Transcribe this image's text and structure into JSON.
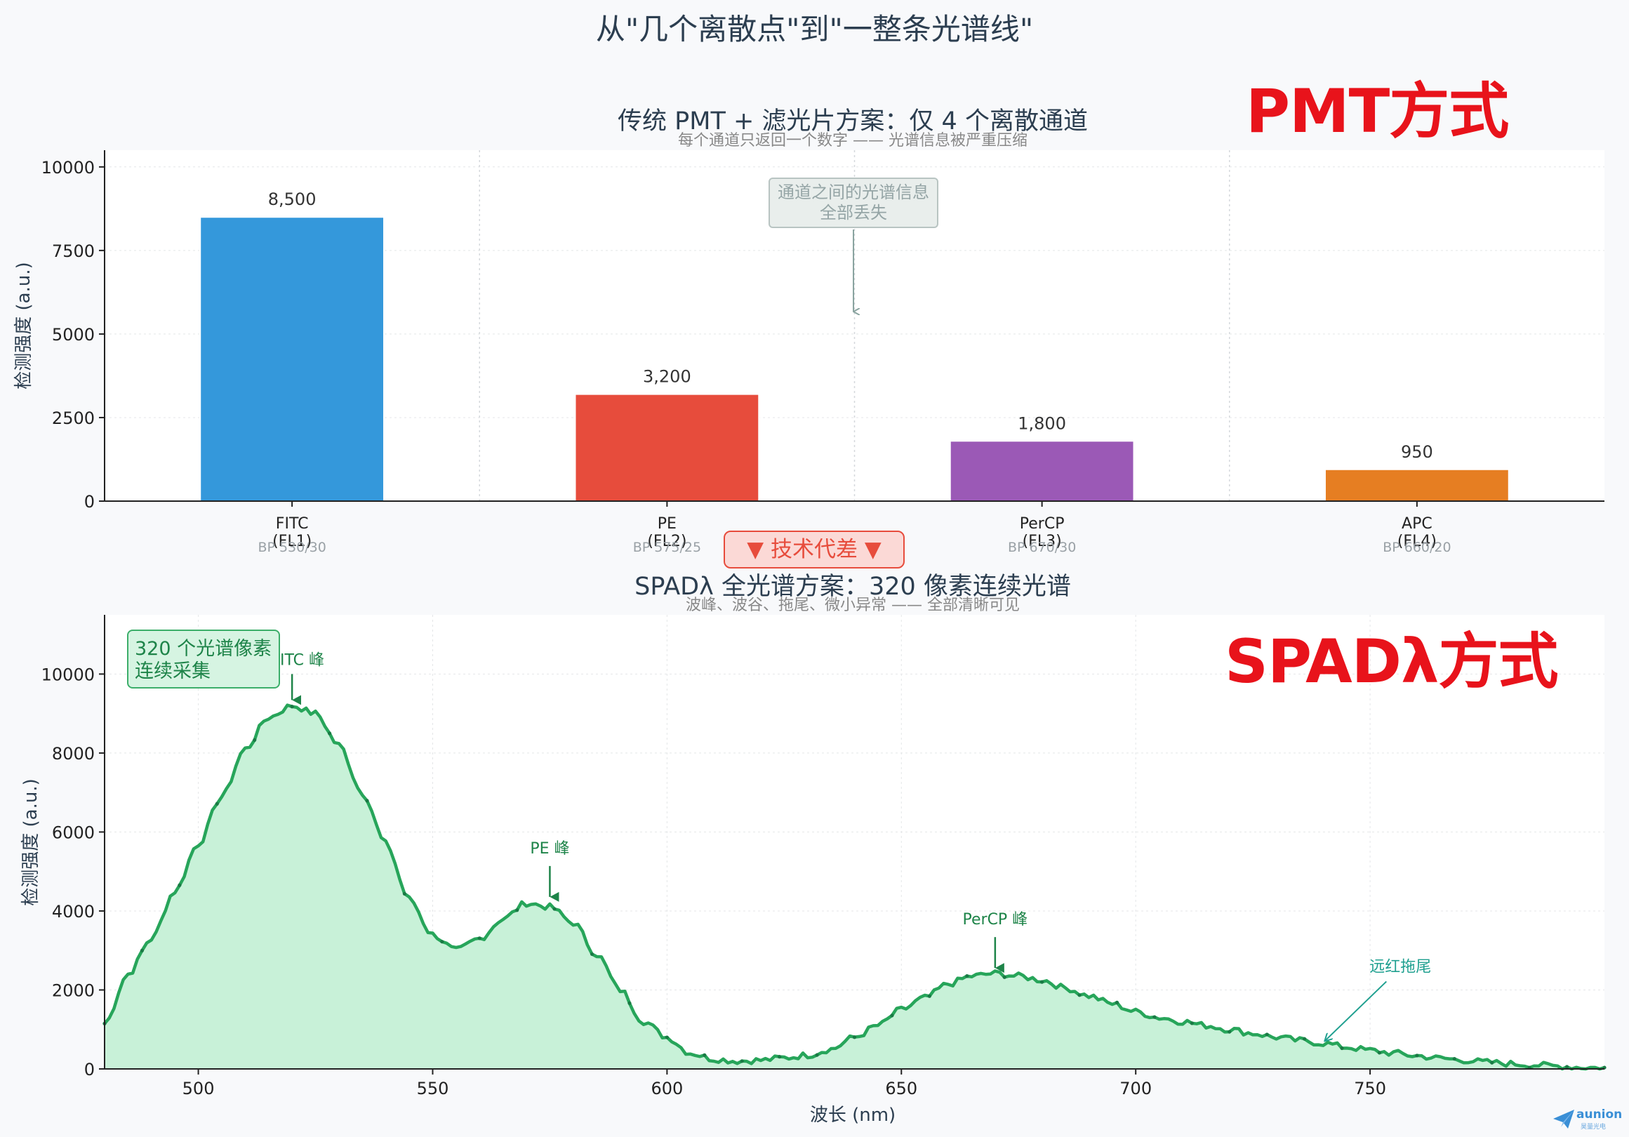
{
  "figure": {
    "title": "从\"几个离散点\"到\"一整条光谱线\"",
    "top_method_label": "PMT方式",
    "bottom_method_label": "SPADλ方式",
    "gap_badge": "▼  技术代差  ▼",
    "logo": {
      "name": "aunion",
      "sub": "昊量光电"
    },
    "colors": {
      "background": "#f8f9fb",
      "text": "#2c3e50",
      "spectrum_line": "#27a55a",
      "spectrum_fill": "#c8f1d8",
      "annotation_green": "#1e8449",
      "method_label_red": "#e8131b"
    }
  },
  "chart_data": [
    {
      "type": "bar",
      "title": "传统 PMT + 滤光片方案：仅 4 个离散通道",
      "subtitle": "每个通道只返回一个数字 —— 光谱信息被严重压缩",
      "ylabel": "检测强度 (a.u.)",
      "ylim": [
        0,
        10500
      ],
      "yticks": [
        0,
        2500,
        5000,
        7500,
        10000
      ],
      "grid": true,
      "categories": [
        {
          "name": "FITC",
          "channel": "(FL1)",
          "filter": "BP 530/30",
          "value": 8500,
          "value_label": "8,500",
          "color": "#3498db"
        },
        {
          "name": "PE",
          "channel": "(FL2)",
          "filter": "BP 575/25",
          "value": 3200,
          "value_label": "3,200",
          "color": "#e74c3c"
        },
        {
          "name": "PerCP",
          "channel": "(FL3)",
          "filter": "BP 670/30",
          "value": 1800,
          "value_label": "1,800",
          "color": "#9b59b6"
        },
        {
          "name": "APC",
          "channel": "(FL4)",
          "filter": "BP 660/20",
          "value": 950,
          "value_label": "950",
          "color": "#e67e22"
        }
      ],
      "annotation": {
        "line1": "通道之间的光谱信息",
        "line2": "全部丢失"
      }
    },
    {
      "type": "area",
      "title": "SPADλ 全光谱方案：320 像素连续光谱",
      "subtitle": "波峰、波谷、拖尾、微小异常 —— 全部清晰可见",
      "xlabel": "波长 (nm)",
      "ylabel": "检测强度 (a.u.)",
      "xlim": [
        480,
        800
      ],
      "ylim": [
        0,
        11500
      ],
      "xticks": [
        500,
        550,
        600,
        650,
        700,
        750
      ],
      "yticks": [
        0,
        2000,
        4000,
        6000,
        8000,
        10000
      ],
      "grid": true,
      "pixels": 320,
      "x": [
        480,
        485,
        490,
        495,
        500,
        505,
        510,
        515,
        520,
        525,
        530,
        535,
        540,
        545,
        550,
        555,
        560,
        565,
        570,
        575,
        580,
        585,
        590,
        595,
        600,
        605,
        610,
        615,
        620,
        625,
        630,
        635,
        640,
        645,
        650,
        655,
        660,
        665,
        670,
        675,
        680,
        685,
        690,
        695,
        700,
        705,
        710,
        715,
        720,
        725,
        730,
        735,
        740,
        745,
        750,
        755,
        760,
        765,
        770,
        775,
        780,
        785,
        790,
        795,
        800
      ],
      "y": [
        1150,
        2400,
        3300,
        4500,
        5700,
        6900,
        8100,
        8900,
        9200,
        9000,
        8200,
        7000,
        5700,
        4300,
        3400,
        3000,
        3300,
        3800,
        4200,
        4100,
        3700,
        2900,
        2000,
        1200,
        800,
        400,
        250,
        200,
        220,
        280,
        350,
        500,
        800,
        1100,
        1500,
        1800,
        2150,
        2350,
        2420,
        2350,
        2250,
        2050,
        1850,
        1650,
        1450,
        1300,
        1200,
        1100,
        1000,
        900,
        800,
        720,
        650,
        550,
        470,
        400,
        330,
        270,
        220,
        170,
        130,
        100,
        70,
        40,
        20
      ],
      "annotations": [
        {
          "text": "FITC 峰",
          "x": 520,
          "y": 9200
        },
        {
          "text": "PE 峰",
          "x": 575,
          "y": 4250
        },
        {
          "text": "PerCP 峰",
          "x": 670,
          "y": 2450
        },
        {
          "text": "远红拖尾",
          "x": 740,
          "y": 650
        }
      ],
      "legend_box": {
        "line1": "320 个光谱像素",
        "line2": "连续采集"
      }
    }
  ]
}
